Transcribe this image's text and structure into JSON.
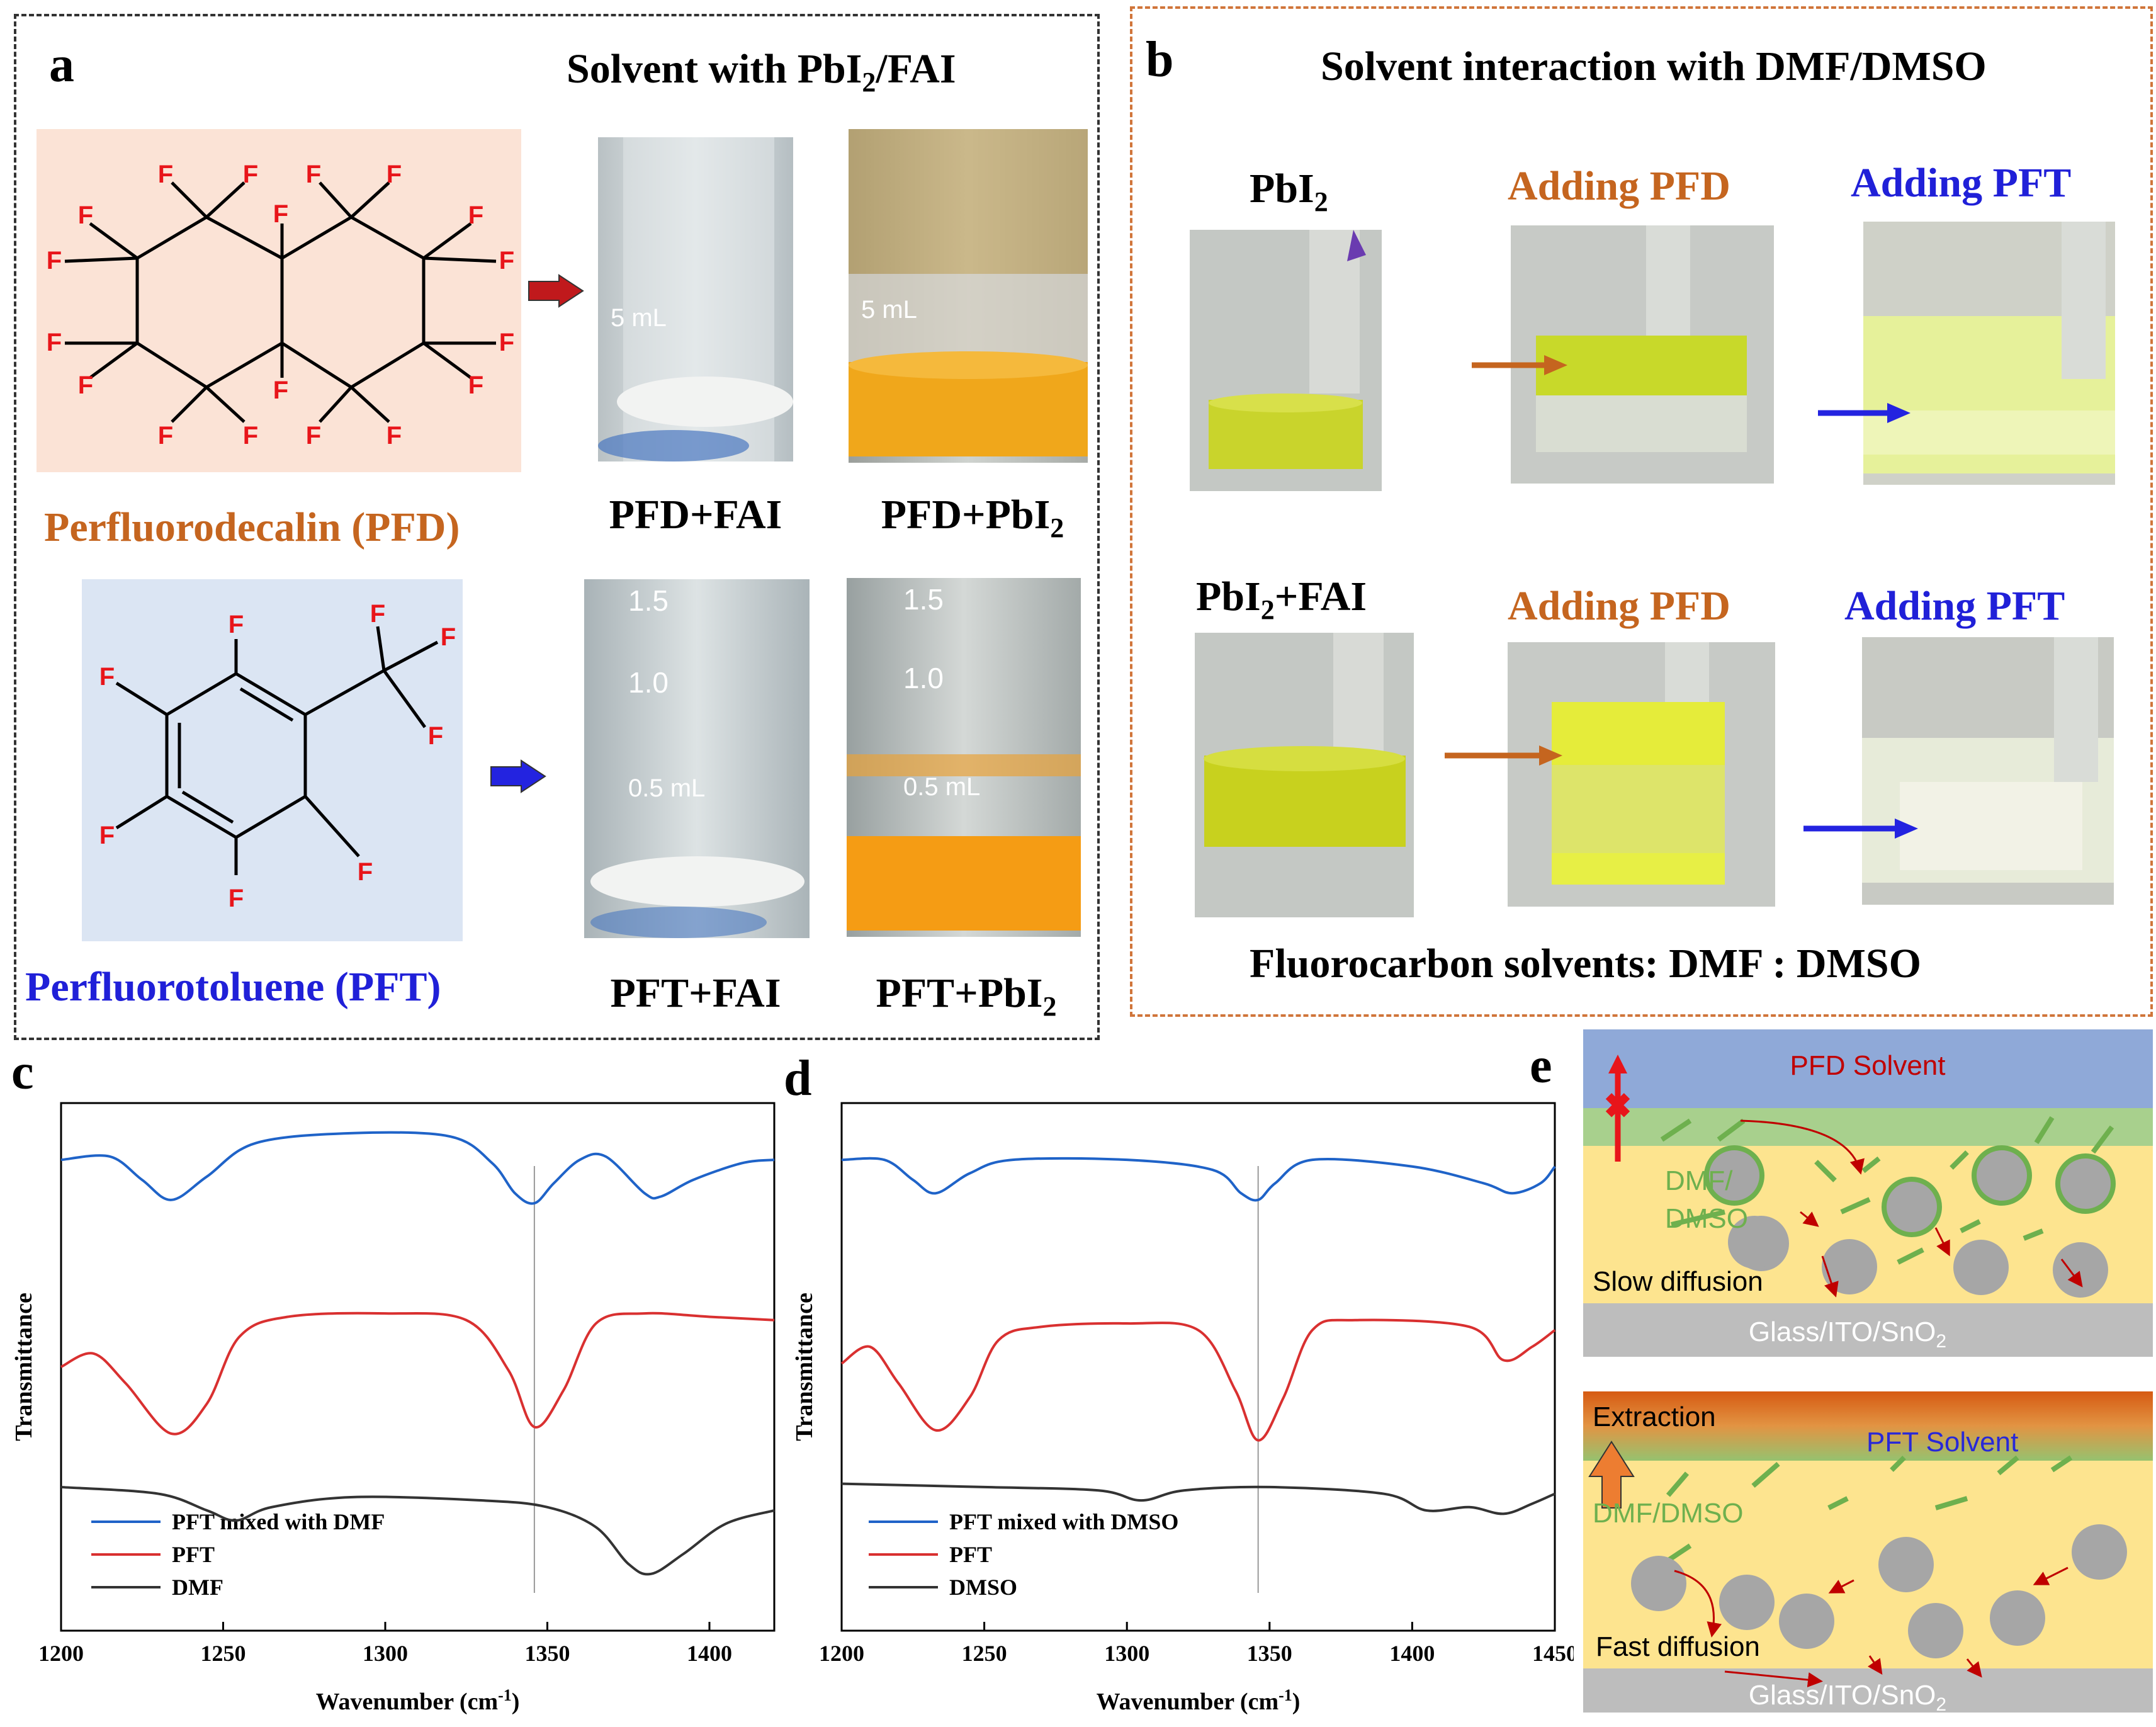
{
  "panel_a": {
    "letter": "a",
    "title": "Solvent with PbI",
    "title_sub": "2",
    "title_tail": "/FAI",
    "pfd_name": "Perfluorodecalin (PFD)",
    "pft_name": "Perfluorotoluene (PFT)",
    "atom_label": "F",
    "photo_labels": {
      "pfd_fai": "PFD+FAI",
      "pfd_pbi2": "PFD+PbI",
      "pft_fai": "PFT+FAI",
      "pft_pbi2": "PFT+PbI",
      "sub2": "2"
    },
    "vial_marks": {
      "five_ml": "5 mL",
      "v15": "1.5",
      "v10": "1.0",
      "v05": "0.5 mL"
    },
    "colors": {
      "pfd_bg": "#fbe3d6",
      "pft_bg": "#dbe5f3",
      "pfd_text": "#c5651f",
      "pft_text": "#2020d8",
      "atom": "#e8151a",
      "red_arrow": "#c0191c",
      "blue_arrow": "#2323e0"
    }
  },
  "panel_b": {
    "letter": "b",
    "title": "Solvent interaction with DMF/DMSO",
    "row1_start": "PbI",
    "row2_start": "PbI",
    "row2_tail": "+FAI",
    "sub2": "2",
    "adding_pfd": "Adding PFD",
    "adding_pft": "Adding PFT",
    "footer": "Fluorocarbon solvents: DMF : DMSO",
    "colors": {
      "orange": "#c5651f",
      "blue": "#2020d8"
    }
  },
  "panel_c": {
    "letter": "c",
    "chart_data": {
      "type": "line",
      "xlabel": "Wavenumber (cm",
      "xlabel_sup": "-1",
      "xlabel_tail": ")",
      "ylabel": "Transmittance",
      "xlim": [
        1200,
        1420
      ],
      "xticks": [
        "1200",
        "1250",
        "1300",
        "1350",
        "1400"
      ],
      "vline_x": 1346,
      "series": [
        {
          "name": "PFT mixed with DMF",
          "color": "#1f63c8",
          "x": [
            1200,
            1215,
            1225,
            1234,
            1245,
            1260,
            1290,
            1320,
            1333,
            1340,
            1346,
            1352,
            1360,
            1368,
            1380,
            1385,
            1395,
            1410,
            1420
          ],
          "y": [
            7.55,
            7.6,
            7.25,
            6.95,
            7.3,
            7.8,
            7.95,
            7.9,
            7.5,
            7.05,
            6.9,
            7.2,
            7.55,
            7.6,
            7.05,
            7.0,
            7.25,
            7.5,
            7.55
          ]
        },
        {
          "name": "PFT",
          "color": "#d93030",
          "x": [
            1200,
            1210,
            1220,
            1234,
            1245,
            1255,
            1270,
            1300,
            1325,
            1338,
            1346,
            1355,
            1365,
            1380,
            1400,
            1420
          ],
          "y": [
            4.45,
            4.65,
            4.2,
            3.45,
            3.9,
            4.9,
            5.2,
            5.25,
            5.15,
            4.4,
            3.55,
            4.1,
            5.1,
            5.25,
            5.2,
            5.15
          ]
        },
        {
          "name": "DMF",
          "color": "#333333",
          "x": [
            1200,
            1230,
            1245,
            1254,
            1265,
            1290,
            1330,
            1350,
            1365,
            1375,
            1382,
            1392,
            1405,
            1420
          ],
          "y": [
            2.65,
            2.55,
            2.3,
            2.15,
            2.35,
            2.5,
            2.45,
            2.35,
            2.05,
            1.5,
            1.35,
            1.65,
            2.1,
            2.3
          ]
        }
      ]
    }
  },
  "panel_d": {
    "letter": "d",
    "chart_data": {
      "type": "line",
      "xlabel": "Wavenumber (cm",
      "xlabel_sup": "-1",
      "xlabel_tail": ")",
      "ylabel": "Transmittance",
      "xlim": [
        1200,
        1450
      ],
      "xticks": [
        "1200",
        "1250",
        "1300",
        "1350",
        "1400",
        "1450"
      ],
      "vline_x": 1346,
      "series": [
        {
          "name": "PFT mixed with DMSO",
          "color": "#1f63c8",
          "x": [
            1200,
            1215,
            1225,
            1233,
            1245,
            1260,
            1300,
            1330,
            1340,
            1346,
            1352,
            1365,
            1400,
            1425,
            1435,
            1445,
            1450
          ],
          "y": [
            7.55,
            7.55,
            7.25,
            7.05,
            7.35,
            7.55,
            7.55,
            7.4,
            7.05,
            6.95,
            7.2,
            7.55,
            7.45,
            7.2,
            7.05,
            7.2,
            7.45
          ]
        },
        {
          "name": "PFT",
          "color": "#d93030",
          "x": [
            1200,
            1210,
            1220,
            1233,
            1245,
            1255,
            1270,
            1300,
            1325,
            1338,
            1346,
            1355,
            1365,
            1380,
            1420,
            1432,
            1442,
            1450
          ],
          "y": [
            4.5,
            4.75,
            4.2,
            3.5,
            4.0,
            4.85,
            5.05,
            5.1,
            5.0,
            4.1,
            3.35,
            4.0,
            5.0,
            5.15,
            5.05,
            4.55,
            4.75,
            5.0
          ]
        },
        {
          "name": "DMSO",
          "color": "#333333",
          "x": [
            1200,
            1250,
            1290,
            1305,
            1320,
            1350,
            1390,
            1405,
            1420,
            1432,
            1442,
            1450
          ],
          "y": [
            2.7,
            2.65,
            2.6,
            2.45,
            2.6,
            2.65,
            2.55,
            2.3,
            2.35,
            2.25,
            2.4,
            2.55
          ]
        }
      ]
    }
  },
  "panel_e": {
    "letter": "e",
    "top": {
      "title": "PFD Solvent",
      "label_dmf": "DMF/",
      "label_dmso": "DMSO",
      "slow": "Slow diffusion",
      "substrate": "Glass/ITO/SnO",
      "sub2": "2"
    },
    "bottom": {
      "title": "PFT Solvent",
      "extraction": "Extraction",
      "label": "DMF/DMSO",
      "fast": "Fast diffusion",
      "substrate": "Glass/ITO/SnO",
      "sub2": "2"
    },
    "colors": {
      "solvent_blue": "#8fa9d8",
      "green": "#a8d08d",
      "yellow": "#fde48f",
      "gray": "#bdbdbd",
      "particle": "#a6a6a6",
      "ligand": "#6eb04e",
      "red_text": "#c00000",
      "blue_text": "#2828d8",
      "orange": "#ed7d31"
    }
  }
}
